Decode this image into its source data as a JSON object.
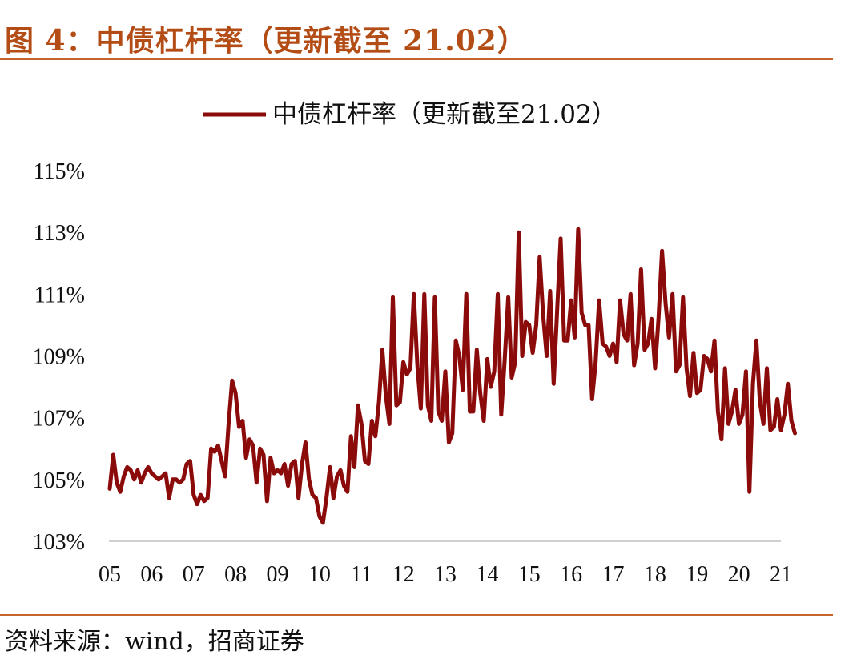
{
  "figure_title": "图 4：中债杠杆率（更新截至 21.02）",
  "source_text": "资料来源：wind，招商证券",
  "colors": {
    "line": "#8b0a0a",
    "accent": "#b34d15",
    "rule": "#c8652c",
    "axis": "#d0d0d0"
  },
  "chart_data": {
    "type": "line",
    "title": "",
    "xlabel": "",
    "ylabel": "",
    "ylim": [
      103,
      115
    ],
    "xlim": [
      0,
      192
    ],
    "yticks": [
      103,
      105,
      107,
      109,
      111,
      113,
      115
    ],
    "ytick_labels": [
      "103%",
      "105%",
      "107%",
      "109%",
      "111%",
      "113%",
      "115%"
    ],
    "xticks": [
      0,
      12,
      24,
      36,
      48,
      60,
      72,
      84,
      96,
      108,
      120,
      132,
      144,
      156,
      168,
      180,
      192
    ],
    "xtick_labels": [
      "05",
      "06",
      "07",
      "08",
      "09",
      "10",
      "11",
      "12",
      "13",
      "14",
      "15",
      "16",
      "17",
      "18",
      "19",
      "20",
      "21"
    ],
    "legend": {
      "position": "top-center",
      "entries": [
        "中债杠杆率（更新截至21.02）"
      ]
    },
    "grid": false,
    "series": [
      {
        "name": "中债杠杆率（更新截至21.02）",
        "values": [
          104.7,
          105.8,
          104.9,
          104.6,
          105.1,
          105.4,
          105.3,
          105.0,
          105.3,
          104.9,
          105.2,
          105.4,
          105.2,
          105.1,
          105.0,
          105.1,
          105.2,
          104.4,
          105.0,
          105.0,
          104.9,
          105.0,
          105.5,
          105.6,
          104.5,
          104.2,
          104.5,
          104.3,
          104.4,
          106.0,
          105.9,
          106.1,
          105.6,
          105.1,
          106.8,
          108.2,
          107.8,
          106.7,
          106.9,
          105.7,
          106.3,
          106.1,
          104.9,
          106.0,
          105.8,
          104.3,
          105.7,
          105.2,
          105.3,
          105.2,
          105.5,
          104.8,
          105.5,
          105.6,
          104.4,
          105.5,
          106.2,
          105.0,
          104.5,
          104.4,
          103.8,
          103.6,
          104.4,
          105.4,
          104.4,
          105.1,
          105.3,
          104.8,
          104.6,
          106.4,
          105.4,
          107.4,
          106.8,
          105.6,
          105.5,
          106.9,
          106.4,
          107.5,
          109.2,
          107.7,
          106.8,
          110.9,
          107.4,
          107.5,
          108.8,
          108.4,
          108.6,
          111.0,
          108.7,
          107.3,
          111.0,
          107.4,
          106.9,
          110.9,
          107.2,
          106.9,
          108.5,
          106.2,
          106.5,
          109.5,
          109.0,
          107.9,
          111.0,
          107.2,
          107.2,
          109.2,
          107.8,
          106.9,
          108.9,
          108.0,
          108.5,
          111.0,
          107.1,
          108.9,
          110.9,
          108.3,
          108.8,
          113.0,
          109.0,
          110.1,
          110.0,
          109.1,
          110.0,
          112.2,
          110.3,
          109.0,
          111.1,
          108.1,
          110.5,
          112.8,
          109.5,
          109.5,
          110.8,
          109.6,
          113.1,
          110.4,
          110.0,
          110.0,
          107.6,
          108.8,
          110.8,
          109.4,
          109.3,
          109.0,
          109.4,
          108.8,
          110.8,
          109.7,
          109.5,
          111.0,
          108.7,
          109.4,
          111.8,
          109.2,
          109.4,
          110.2,
          108.6,
          110.2,
          112.4,
          110.7,
          109.6,
          111.0,
          108.5,
          108.7,
          110.9,
          108.6,
          107.7,
          109.1,
          107.8,
          107.9,
          109.0,
          108.9,
          108.5,
          109.5,
          107.2,
          106.3,
          108.6,
          106.8,
          107.2,
          107.9,
          106.8,
          107.1,
          108.5,
          104.6,
          108.1,
          109.5,
          107.5,
          106.8,
          108.6,
          106.6,
          106.7,
          107.6,
          106.6,
          107.1,
          108.1,
          106.9,
          106.5
        ]
      }
    ]
  }
}
